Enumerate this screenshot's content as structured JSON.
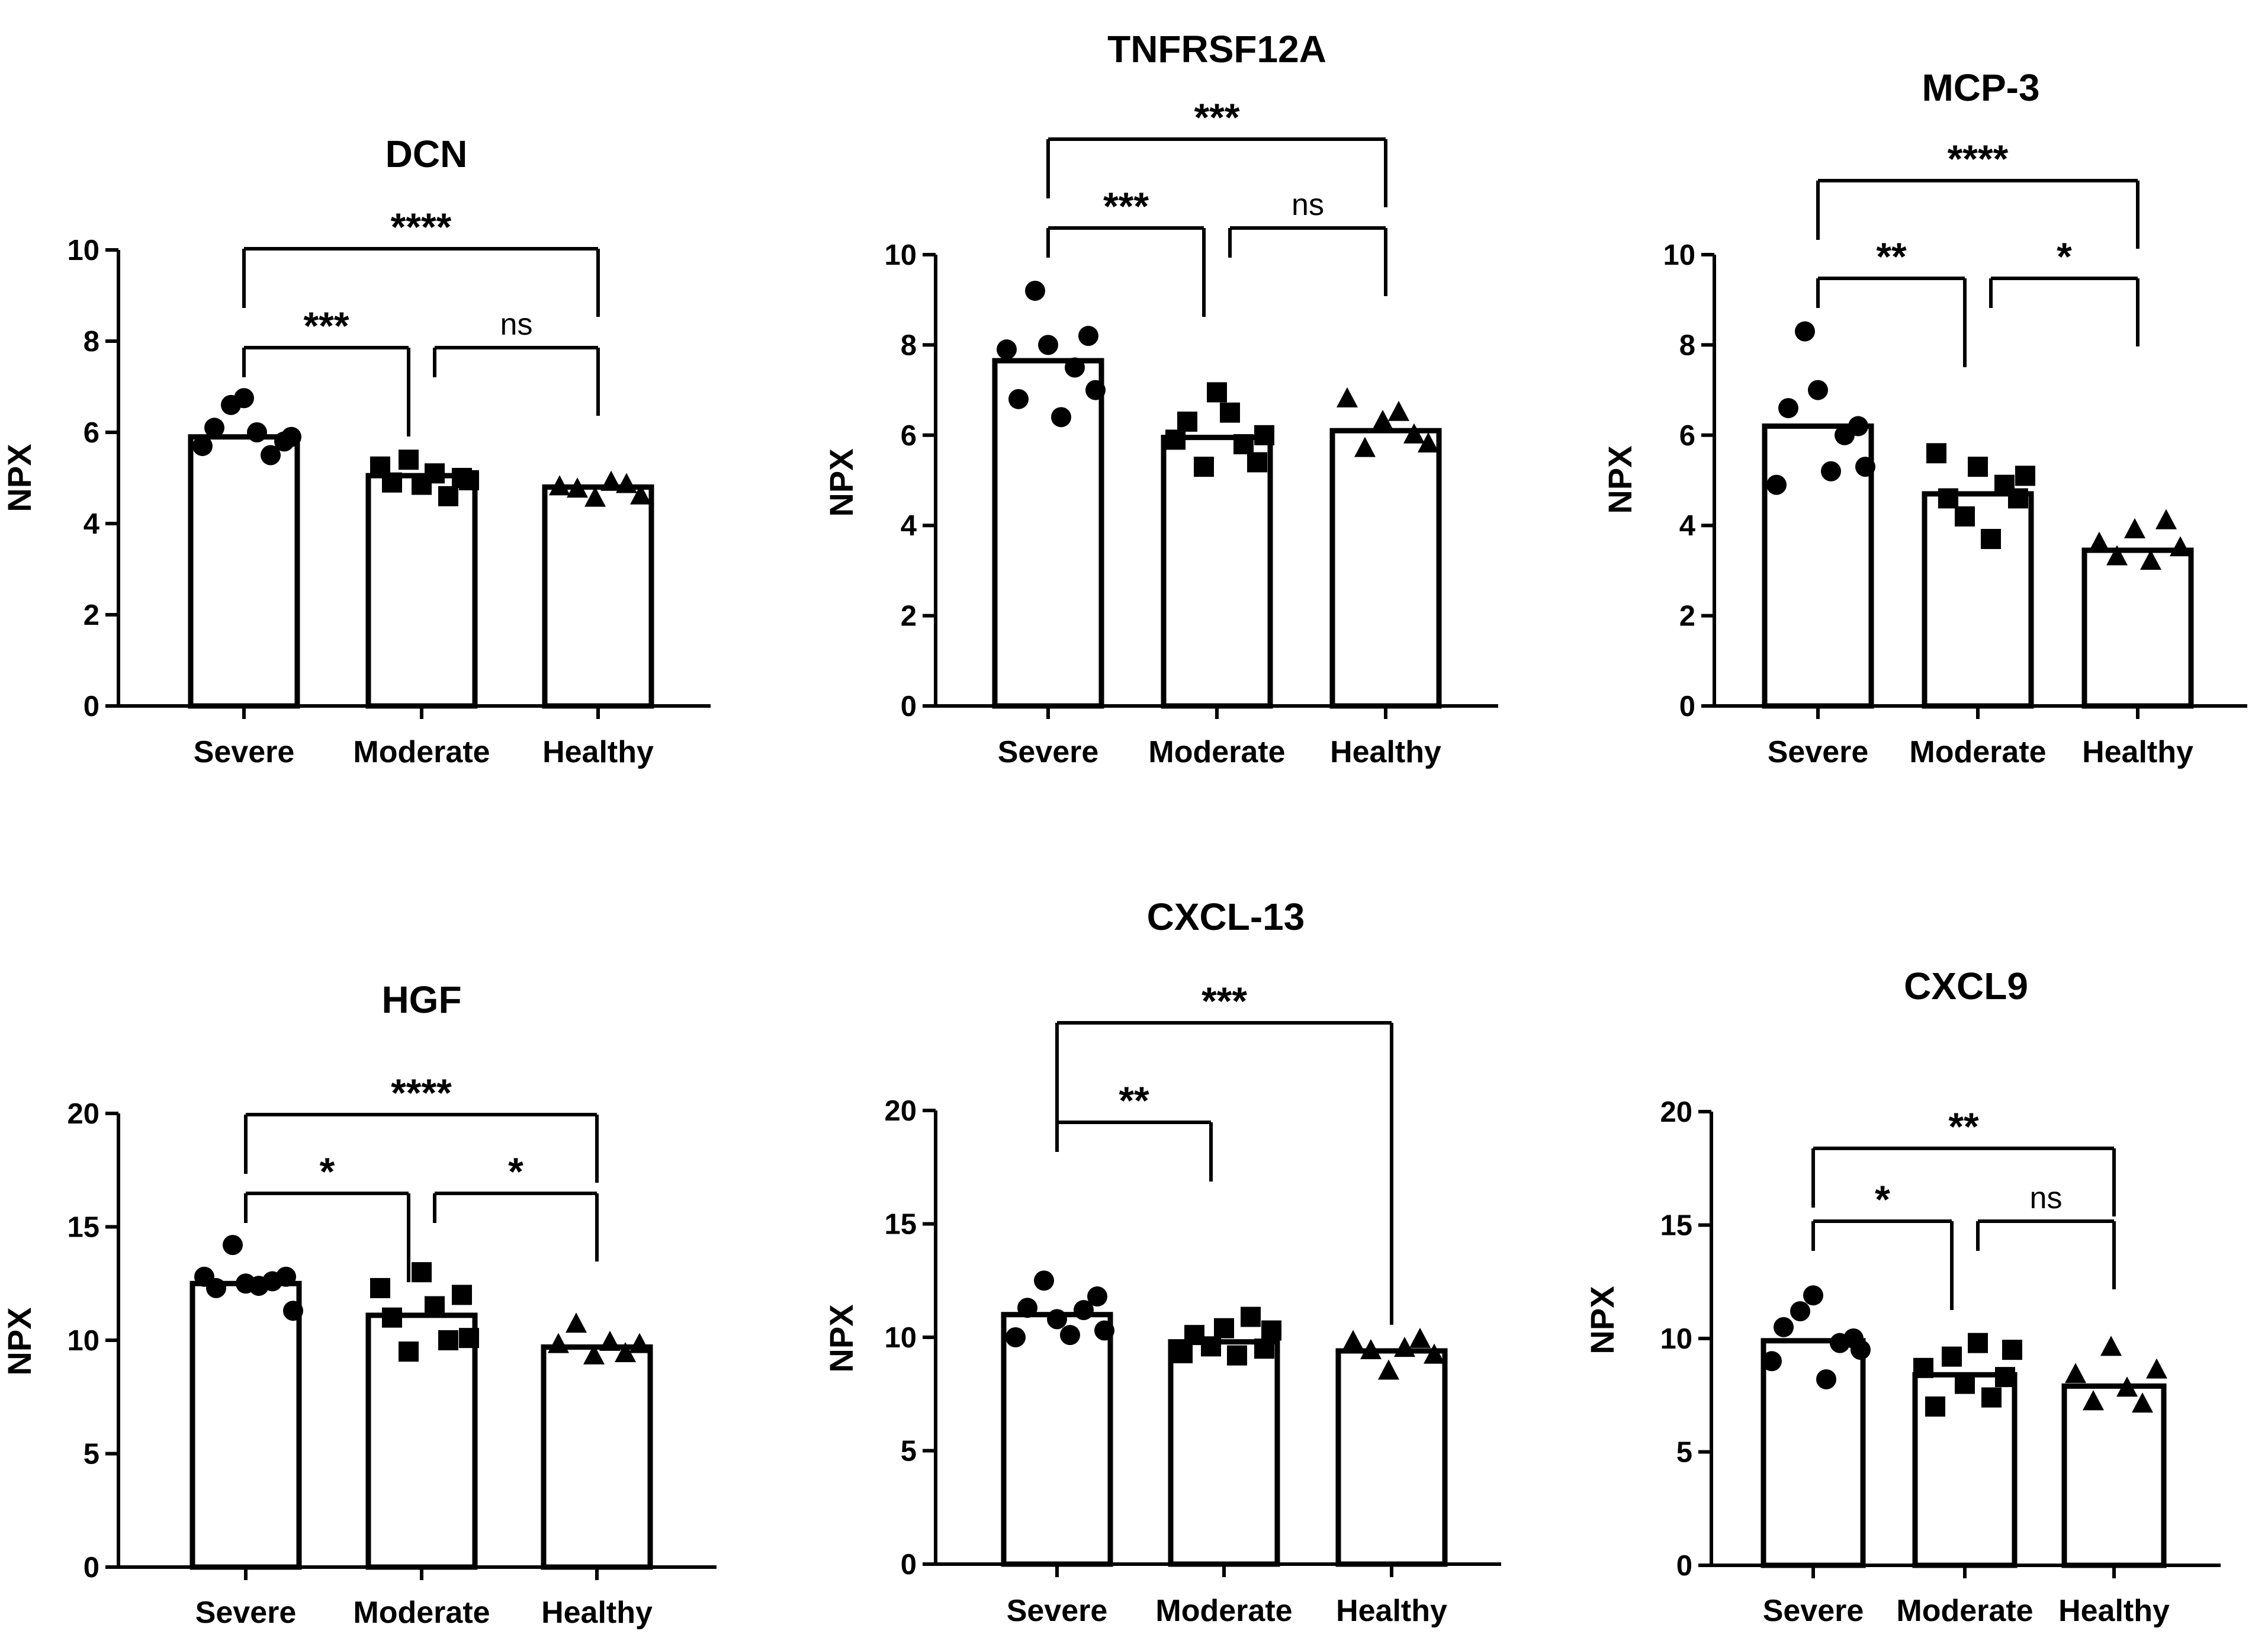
{
  "chart_data": [
    {
      "type": "bar",
      "title": "DCN",
      "ylabel": "NPX",
      "ylim": [
        0,
        10
      ],
      "yticks": [
        0,
        2,
        4,
        6,
        8,
        10
      ],
      "categories": [
        "Severe",
        "Moderate",
        "Healthy"
      ],
      "values": [
        5.9,
        5.05,
        4.8
      ],
      "points": [
        [
          5.7,
          6.1,
          6.6,
          6.75,
          6.0,
          5.5,
          5.8,
          5.9
        ],
        [
          5.25,
          4.9,
          5.4,
          4.85,
          5.1,
          4.6,
          5.0,
          4.95
        ],
        [
          4.8,
          4.75,
          4.55,
          4.9,
          4.85,
          4.6
        ]
      ],
      "comparisons": [
        {
          "from": 0,
          "to": 1,
          "label": "***"
        },
        {
          "from": 1,
          "to": 2,
          "label": "ns"
        },
        {
          "from": 0,
          "to": 2,
          "label": "****"
        }
      ]
    },
    {
      "type": "bar",
      "title": "TNFRSF12A",
      "ylabel": "NPX",
      "ylim": [
        0,
        10
      ],
      "yticks": [
        0,
        2,
        4,
        6,
        8,
        10
      ],
      "categories": [
        "Severe",
        "Moderate",
        "Healthy"
      ],
      "values": [
        7.65,
        5.95,
        6.1
      ],
      "points": [
        [
          7.9,
          6.8,
          9.2,
          8.0,
          6.4,
          7.5,
          8.2,
          7.0
        ],
        [
          5.9,
          6.3,
          5.3,
          6.95,
          6.5,
          5.8,
          5.4,
          6.0
        ],
        [
          6.8,
          5.7,
          6.3,
          6.5,
          6.0,
          5.8
        ]
      ],
      "comparisons": [
        {
          "from": 0,
          "to": 1,
          "label": "***"
        },
        {
          "from": 1,
          "to": 2,
          "label": "ns"
        },
        {
          "from": 0,
          "to": 2,
          "label": "***"
        }
      ]
    },
    {
      "type": "bar",
      "title": "MCP-3",
      "ylabel": "NPX",
      "ylim": [
        0,
        10
      ],
      "yticks": [
        0,
        2,
        4,
        6,
        8,
        10
      ],
      "categories": [
        "Severe",
        "Moderate",
        "Healthy"
      ],
      "values": [
        6.2,
        4.7,
        3.45
      ],
      "points": [
        [
          4.9,
          6.6,
          8.3,
          7.0,
          5.2,
          6.0,
          6.2,
          5.3
        ],
        [
          5.6,
          4.6,
          4.2,
          5.3,
          3.7,
          4.9,
          4.6,
          5.1
        ],
        [
          3.6,
          3.3,
          3.9,
          3.2,
          4.1,
          3.5
        ]
      ],
      "comparisons": [
        {
          "from": 0,
          "to": 1,
          "label": "**"
        },
        {
          "from": 1,
          "to": 2,
          "label": "*"
        },
        {
          "from": 0,
          "to": 2,
          "label": "****"
        }
      ]
    },
    {
      "type": "bar",
      "title": "HGF",
      "ylabel": "NPX",
      "ylim": [
        0,
        20
      ],
      "yticks": [
        0,
        5,
        10,
        15,
        20
      ],
      "categories": [
        "Severe",
        "Moderate",
        "Healthy"
      ],
      "values": [
        12.5,
        11.1,
        9.7
      ],
      "points": [
        [
          12.8,
          12.3,
          14.2,
          12.5,
          12.4,
          12.6,
          12.8,
          11.3
        ],
        [
          12.3,
          11.0,
          9.5,
          13.0,
          11.5,
          10.0,
          12.0,
          10.1
        ],
        [
          9.8,
          10.7,
          9.3,
          9.9,
          9.4,
          9.8
        ]
      ],
      "comparisons": [
        {
          "from": 0,
          "to": 1,
          "label": "*"
        },
        {
          "from": 1,
          "to": 2,
          "label": "*"
        },
        {
          "from": 0,
          "to": 2,
          "label": "****"
        }
      ]
    },
    {
      "type": "bar",
      "title": "CXCL-13",
      "ylabel": "NPX",
      "ylim": [
        0,
        20
      ],
      "yticks": [
        0,
        5,
        10,
        15,
        20
      ],
      "categories": [
        "Severe",
        "Moderate",
        "Healthy"
      ],
      "values": [
        11.0,
        9.8,
        9.4
      ],
      "points": [
        [
          10.0,
          11.3,
          12.5,
          10.8,
          10.1,
          11.2,
          11.8,
          10.3
        ],
        [
          9.3,
          10.1,
          9.6,
          10.4,
          9.2,
          10.9,
          9.5,
          10.3
        ],
        [
          9.8,
          9.4,
          8.5,
          9.5,
          9.9,
          9.2
        ]
      ],
      "comparisons": [
        {
          "from": 0,
          "to": 1,
          "label": "**"
        },
        {
          "from": 0,
          "to": 2,
          "label": "***"
        }
      ]
    },
    {
      "type": "bar",
      "title": "CXCL9",
      "ylabel": "NPX",
      "ylim": [
        0,
        20
      ],
      "yticks": [
        0,
        5,
        10,
        15,
        20
      ],
      "categories": [
        "Severe",
        "Moderate",
        "Healthy"
      ],
      "values": [
        9.9,
        8.4,
        7.9
      ],
      "points": [
        [
          9.0,
          10.5,
          11.2,
          11.9,
          8.2,
          9.8,
          10.0,
          9.5
        ],
        [
          8.7,
          7.0,
          9.2,
          8.0,
          9.8,
          7.4,
          8.3,
          9.5
        ],
        [
          8.4,
          7.2,
          9.6,
          7.8,
          7.1,
          8.6
        ]
      ],
      "comparisons": [
        {
          "from": 0,
          "to": 1,
          "label": "*"
        },
        {
          "from": 1,
          "to": 2,
          "label": "ns"
        },
        {
          "from": 0,
          "to": 2,
          "label": "**"
        }
      ]
    }
  ]
}
